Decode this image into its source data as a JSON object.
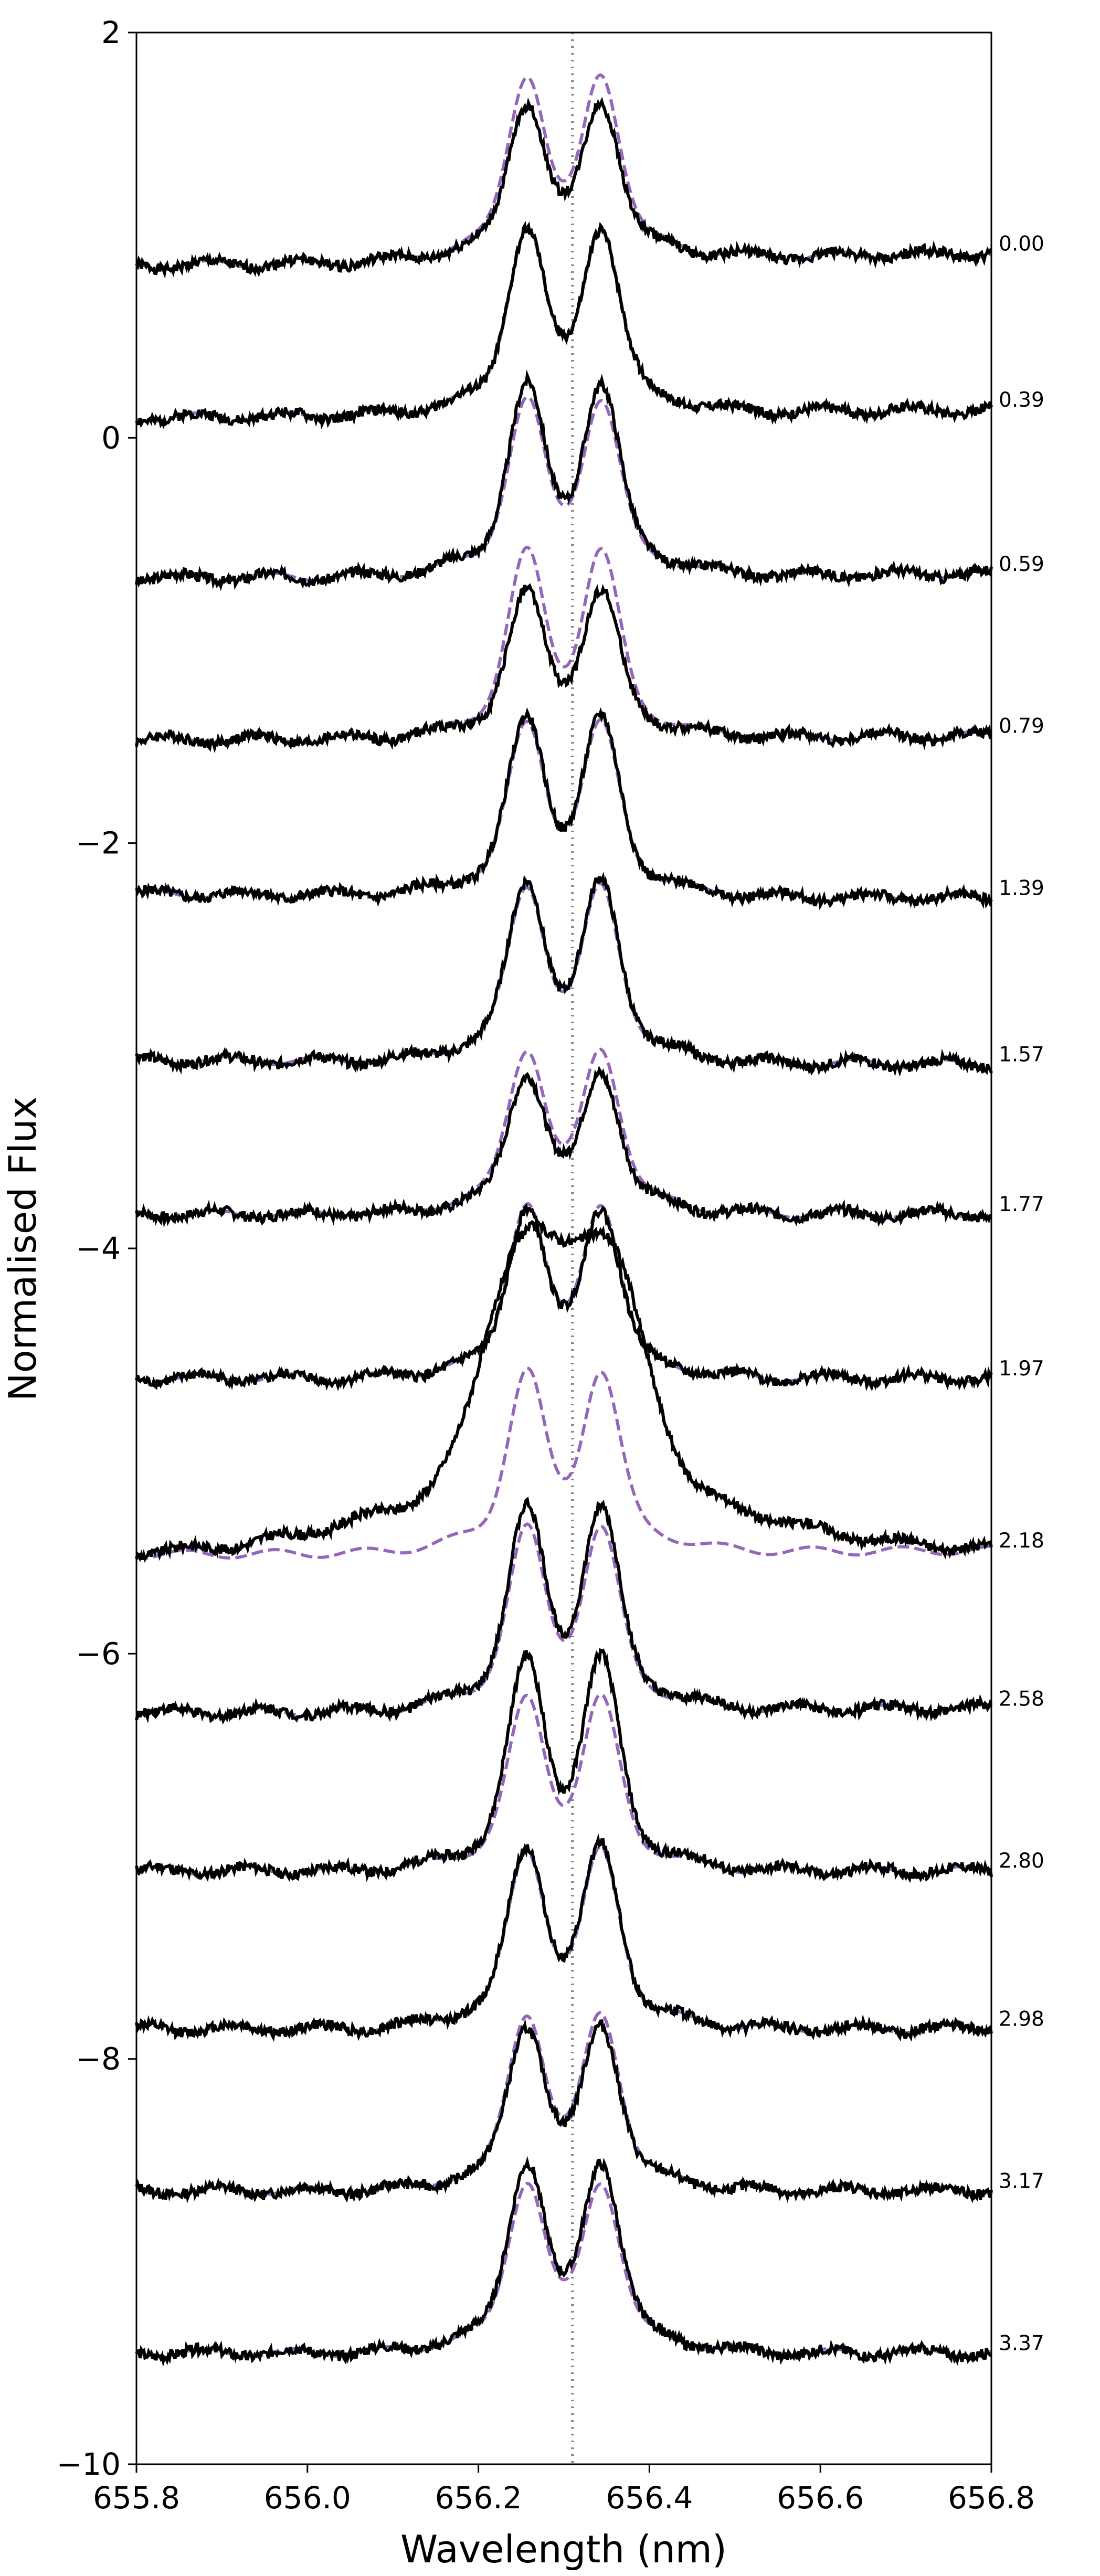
{
  "chart_data": {
    "type": "line",
    "title": "",
    "xlabel": "Wavelength (nm)",
    "ylabel": "Normalised Flux",
    "xlim": [
      655.8,
      656.8
    ],
    "ylim": [
      -10,
      2
    ],
    "xticks": [
      "655.8",
      "656.0",
      "656.2",
      "656.4",
      "656.6",
      "656.8"
    ],
    "yticks": [
      "2",
      "0",
      "−2",
      "−4",
      "−6",
      "−8",
      "−10"
    ],
    "reference_line": {
      "x": 656.31,
      "style": "dotted",
      "color": "#7a7a7a"
    },
    "observed_color": "#000000",
    "model_color": "#9467bd",
    "line_profile": {
      "center": 656.3,
      "peak_separation": 0.085,
      "peak_width": 0.03,
      "central_dip_depth": 0.3
    },
    "series": [
      {
        "label": "0.00",
        "continuum": 0.88,
        "observed_peak": 0.78,
        "model_peak": 0.92,
        "tilt": 0.06
      },
      {
        "label": "0.39",
        "continuum": 0.12,
        "observed_peak": 0.92,
        "model_peak": 0.92,
        "tilt": 0.04
      },
      {
        "label": "0.59",
        "continuum": -0.68,
        "observed_peak": 0.95,
        "model_peak": 0.87,
        "tilt": 0.02
      },
      {
        "label": "0.79",
        "continuum": -1.48,
        "observed_peak": 0.72,
        "model_peak": 0.92,
        "tilt": 0.02
      },
      {
        "label": "1.39",
        "continuum": -2.26,
        "observed_peak": 0.88,
        "model_peak": 0.85,
        "tilt": -0.02
      },
      {
        "label": "1.57",
        "continuum": -3.08,
        "observed_peak": 0.9,
        "model_peak": 0.87,
        "tilt": -0.02
      },
      {
        "label": "1.77",
        "continuum": -3.83,
        "observed_peak": 0.7,
        "model_peak": 0.82,
        "tilt": 0.0
      },
      {
        "label": "1.97",
        "continuum": -4.64,
        "observed_peak": 0.85,
        "model_peak": 0.87,
        "tilt": 0.0
      },
      {
        "label": "2.18",
        "continuum": -5.5,
        "observed_peak": 1.55,
        "model_peak": 0.9,
        "tilt": 0.02
      },
      {
        "label": "2.58",
        "continuum": -6.28,
        "observed_peak": 1.0,
        "model_peak": 0.9,
        "tilt": 0.02
      },
      {
        "label": "2.80",
        "continuum": -7.07,
        "observed_peak": 1.05,
        "model_peak": 0.85,
        "tilt": 0.0
      },
      {
        "label": "2.98",
        "continuum": -7.85,
        "observed_peak": 0.9,
        "model_peak": 0.88,
        "tilt": 0.0
      },
      {
        "label": "3.17",
        "continuum": -8.65,
        "observed_peak": 0.82,
        "model_peak": 0.88,
        "tilt": 0.0
      },
      {
        "label": "3.37",
        "continuum": -9.45,
        "observed_peak": 0.95,
        "model_peak": 0.85,
        "tilt": 0.0
      }
    ]
  }
}
